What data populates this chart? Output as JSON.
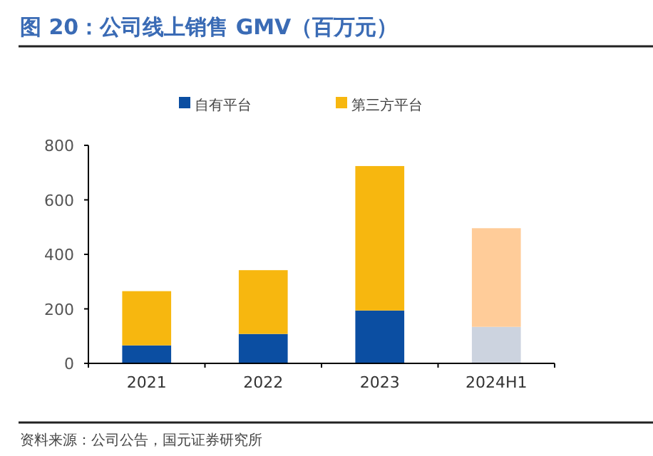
{
  "chart_data": {
    "type": "bar",
    "title": "图 20：公司线上销售 GMV（百万元）",
    "categories": [
      "2021",
      "2022",
      "2023",
      "2024H1"
    ],
    "stacked": true,
    "series": [
      {
        "name": "自有平台",
        "color": "#0b4ea2",
        "colors": [
          "#0b4ea2",
          "#0b4ea2",
          "#0b4ea2",
          "#ccd3df"
        ],
        "values": [
          66,
          108,
          194,
          134
        ]
      },
      {
        "name": "第三方平台",
        "color": "#f7b70f",
        "colors": [
          "#f7b70f",
          "#f7b70f",
          "#f7b70f",
          "#ffcc99"
        ],
        "values": [
          199,
          234,
          530,
          362
        ]
      }
    ],
    "ylim": [
      0,
      800
    ],
    "yticks": [
      0,
      200,
      400,
      600,
      800
    ],
    "grid": false,
    "legend": "top",
    "annotations": [
      "资料来源：公司公告，国元证券研究所"
    ]
  }
}
